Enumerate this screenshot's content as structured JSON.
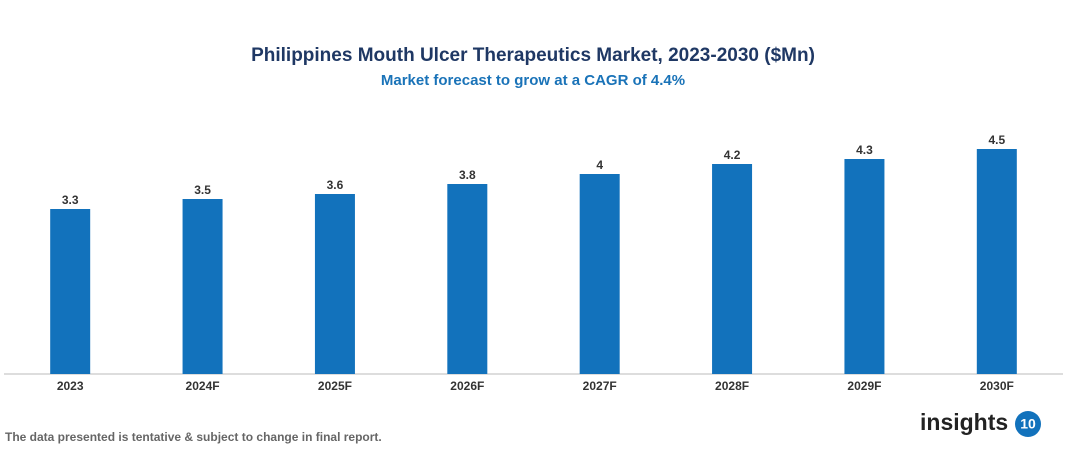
{
  "chart_data": {
    "type": "bar",
    "title": "Philippines Mouth Ulcer Therapeutics Market, 2023-2030 ($Mn)",
    "subtitle": "Market forecast to grow at a CAGR of 4.4%",
    "categories": [
      "2023",
      "2024F",
      "2025F",
      "2026F",
      "2027F",
      "2028F",
      "2029F",
      "2030F"
    ],
    "values": [
      3.3,
      3.5,
      3.6,
      3.8,
      4,
      4.2,
      4.3,
      4.5
    ],
    "color": "#1272bc",
    "ylim": [
      0,
      5
    ]
  },
  "note": "The data presented is tentative & subject to change in final report.",
  "logo": {
    "text": "insights",
    "badge": "10"
  }
}
